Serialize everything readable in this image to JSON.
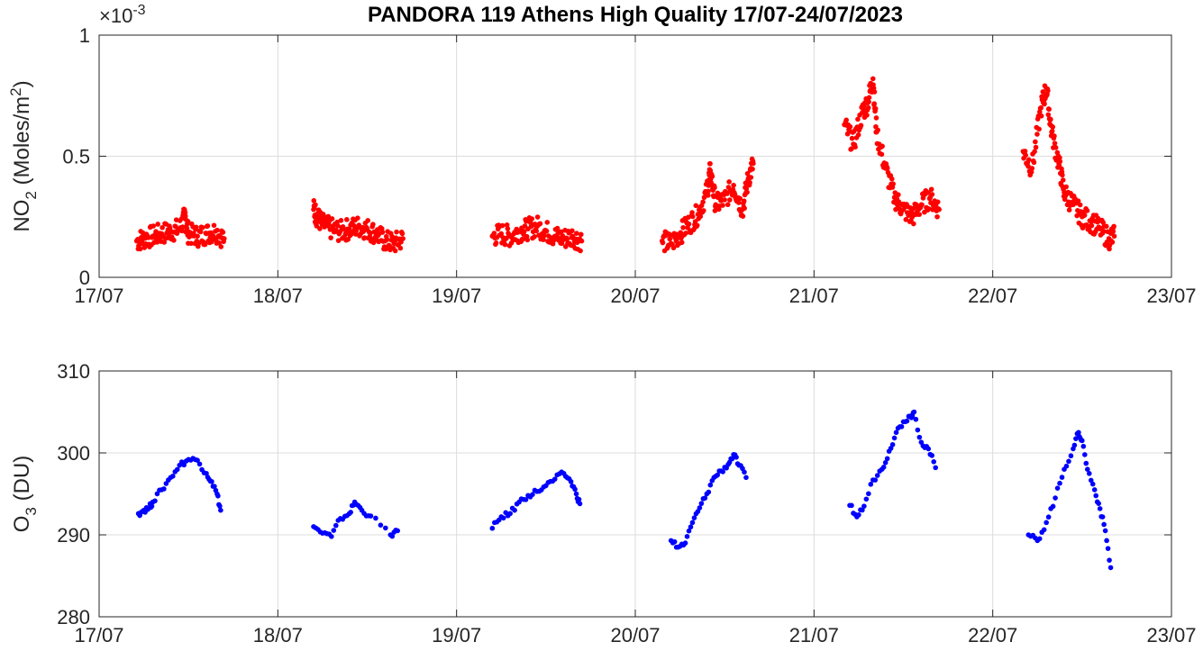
{
  "figure": {
    "title": "PANDORA 119 Athens High Quality 17/07-24/07/2023"
  },
  "chart_data": [
    {
      "type": "scatter",
      "ylabel_main": "NO",
      "ylabel_sub": "2",
      "ylabel_rest": " (Moles/m",
      "ylabel_sup": "2",
      "ylabel_end": ")",
      "y_multiplier": "×10",
      "y_multiplier_exp": "-3",
      "xlim": [
        "17/07",
        "23/07"
      ],
      "ylim": [
        0,
        0.001
      ],
      "xticks": [
        "17/07",
        "18/07",
        "19/07",
        "20/07",
        "21/07",
        "22/07",
        "23/07"
      ],
      "yticks": [
        {
          "v": 0,
          "label": "0"
        },
        {
          "v": 0.0005,
          "label": "0.5"
        },
        {
          "v": 0.001,
          "label": "1"
        }
      ],
      "grid": true,
      "color": "#ff0000",
      "series": [
        {
          "values": [
            [
              17.21,
              0.00015
            ],
            [
              17.25,
              0.00016
            ],
            [
              17.3,
              0.00017
            ],
            [
              17.35,
              0.00018
            ],
            [
              17.4,
              0.00019
            ],
            [
              17.45,
              0.0002
            ],
            [
              17.48,
              0.00025
            ],
            [
              17.5,
              0.00018
            ],
            [
              17.55,
              0.00017
            ],
            [
              17.6,
              0.00018
            ],
            [
              17.65,
              0.00019
            ],
            [
              17.7,
              0.00016
            ]
          ]
        },
        {
          "values": [
            [
              18.2,
              0.00028
            ],
            [
              18.22,
              0.00025
            ],
            [
              18.25,
              0.00022
            ],
            [
              18.3,
              0.0002
            ],
            [
              18.35,
              0.00019
            ],
            [
              18.4,
              0.0002
            ],
            [
              18.45,
              0.00021
            ],
            [
              18.5,
              0.0002
            ],
            [
              18.55,
              0.00018
            ],
            [
              18.6,
              0.00015
            ],
            [
              18.65,
              0.00014
            ],
            [
              18.7,
              0.00016
            ]
          ]
        },
        {
          "values": [
            [
              19.2,
              0.00017
            ],
            [
              19.25,
              0.00018
            ],
            [
              19.3,
              0.00017
            ],
            [
              19.35,
              0.00019
            ],
            [
              19.4,
              0.0002
            ],
            [
              19.45,
              0.00021
            ],
            [
              19.5,
              0.00019
            ],
            [
              19.55,
              0.00017
            ],
            [
              19.6,
              0.00016
            ],
            [
              19.65,
              0.00017
            ],
            [
              19.7,
              0.00015
            ]
          ]
        },
        {
          "values": [
            [
              20.15,
              0.00015
            ],
            [
              20.2,
              0.00014
            ],
            [
              20.25,
              0.00018
            ],
            [
              20.3,
              0.00022
            ],
            [
              20.35,
              0.00026
            ],
            [
              20.4,
              0.00035
            ],
            [
              20.42,
              0.00044
            ],
            [
              20.45,
              0.0003
            ],
            [
              20.5,
              0.00032
            ],
            [
              20.55,
              0.00038
            ],
            [
              20.6,
              0.00028
            ],
            [
              20.63,
              0.0004
            ],
            [
              20.66,
              0.00047
            ]
          ]
        },
        {
          "values": [
            [
              21.17,
              0.00063
            ],
            [
              21.22,
              0.00055
            ],
            [
              21.27,
              0.00068
            ],
            [
              21.3,
              0.00072
            ],
            [
              21.33,
              0.00082
            ],
            [
              21.35,
              0.0006
            ],
            [
              21.4,
              0.00045
            ],
            [
              21.45,
              0.00033
            ],
            [
              21.5,
              0.00028
            ],
            [
              21.55,
              0.00025
            ],
            [
              21.6,
              0.0003
            ],
            [
              21.65,
              0.00033
            ],
            [
              21.7,
              0.00028
            ]
          ]
        },
        {
          "values": [
            [
              22.17,
              0.00052
            ],
            [
              22.22,
              0.00045
            ],
            [
              22.27,
              0.0007
            ],
            [
              22.3,
              0.00078
            ],
            [
              22.33,
              0.0006
            ],
            [
              22.37,
              0.00047
            ],
            [
              22.4,
              0.00035
            ],
            [
              22.45,
              0.0003
            ],
            [
              22.5,
              0.00025
            ],
            [
              22.55,
              0.00023
            ],
            [
              22.6,
              0.0002
            ],
            [
              22.65,
              0.00016
            ],
            [
              22.68,
              0.00017
            ]
          ]
        }
      ]
    },
    {
      "type": "scatter",
      "ylabel_main": "O",
      "ylabel_sub": "3",
      "ylabel_rest": " (DU)",
      "xlim": [
        "17/07",
        "23/07"
      ],
      "ylim": [
        280,
        310
      ],
      "xticks": [
        "17/07",
        "18/07",
        "19/07",
        "20/07",
        "21/07",
        "22/07",
        "23/07"
      ],
      "yticks": [
        {
          "v": 280,
          "label": "280"
        },
        {
          "v": 290,
          "label": "290"
        },
        {
          "v": 300,
          "label": "300"
        },
        {
          "v": 310,
          "label": "310"
        }
      ],
      "grid": true,
      "color": "#0000ff",
      "series": [
        {
          "values": [
            [
              17.22,
              292.6
            ],
            [
              17.25,
              293
            ],
            [
              17.28,
              293.3
            ],
            [
              17.3,
              294
            ],
            [
              17.35,
              295.5
            ],
            [
              17.4,
              297
            ],
            [
              17.45,
              298.5
            ],
            [
              17.5,
              299.2
            ],
            [
              17.55,
              299.1
            ],
            [
              17.6,
              297.5
            ],
            [
              17.63,
              296.5
            ],
            [
              17.66,
              295
            ],
            [
              17.68,
              293
            ]
          ]
        },
        {
          "values": [
            [
              18.2,
              291
            ],
            [
              18.25,
              290.2
            ],
            [
              18.3,
              289.8
            ],
            [
              18.35,
              292
            ],
            [
              18.4,
              292.6
            ],
            [
              18.43,
              294
            ],
            [
              18.47,
              293
            ],
            [
              18.52,
              292.3
            ],
            [
              18.63,
              290
            ],
            [
              18.67,
              290.5
            ]
          ]
        },
        {
          "values": [
            [
              19.2,
              290.8
            ],
            [
              19.25,
              292.2
            ],
            [
              19.3,
              292.6
            ],
            [
              19.35,
              294
            ],
            [
              19.4,
              294.8
            ],
            [
              19.45,
              295.3
            ],
            [
              19.5,
              296
            ],
            [
              19.55,
              296.8
            ],
            [
              19.6,
              297.5
            ],
            [
              19.64,
              296.5
            ],
            [
              19.67,
              295
            ],
            [
              19.69,
              293.8
            ]
          ]
        },
        {
          "values": [
            [
              20.2,
              289.3
            ],
            [
              20.24,
              288.5
            ],
            [
              20.28,
              289
            ],
            [
              20.32,
              291.5
            ],
            [
              20.36,
              293.3
            ],
            [
              20.4,
              295
            ],
            [
              20.44,
              297
            ],
            [
              20.48,
              297.8
            ],
            [
              20.52,
              298.6
            ],
            [
              20.55,
              299.8
            ],
            [
              20.58,
              298.5
            ],
            [
              20.62,
              297
            ]
          ]
        },
        {
          "values": [
            [
              21.2,
              293.6
            ],
            [
              21.24,
              292.2
            ],
            [
              21.28,
              293.5
            ],
            [
              21.33,
              296.7
            ],
            [
              21.38,
              298
            ],
            [
              21.42,
              300.2
            ],
            [
              21.46,
              302.5
            ],
            [
              21.5,
              303.8
            ],
            [
              21.54,
              304.5
            ],
            [
              21.56,
              305
            ],
            [
              21.6,
              301.3
            ],
            [
              21.64,
              300.5
            ],
            [
              21.68,
              298.2
            ]
          ]
        },
        {
          "values": [
            [
              22.2,
              290
            ],
            [
              22.25,
              289.3
            ],
            [
              22.3,
              291.5
            ],
            [
              22.35,
              294.5
            ],
            [
              22.4,
              298
            ],
            [
              22.45,
              300.5
            ],
            [
              22.48,
              302.5
            ],
            [
              22.5,
              301.5
            ],
            [
              22.53,
              298
            ],
            [
              22.57,
              295.5
            ],
            [
              22.6,
              293.2
            ],
            [
              22.63,
              290.5
            ],
            [
              22.66,
              286
            ]
          ]
        }
      ]
    }
  ]
}
